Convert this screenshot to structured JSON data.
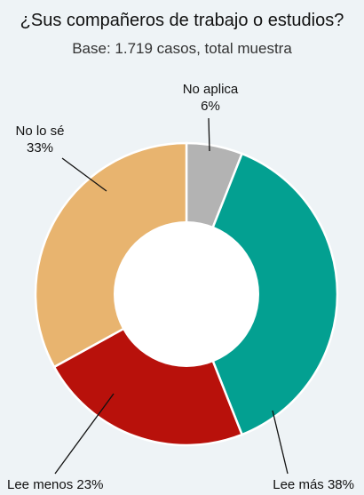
{
  "header": {
    "title": "¿Sus compañeros de trabajo o estudios?",
    "subtitle": "Base: 1.719 casos, total muestra"
  },
  "chart_data": {
    "type": "pie",
    "style": "donut",
    "title": "¿Sus compañeros de trabajo o estudios?",
    "subtitle": "Base: 1.719 casos, total muestra",
    "slices": [
      {
        "label": "No aplica",
        "value": 6,
        "display": "6%",
        "color": "#b3b3b3"
      },
      {
        "label": "Lee más",
        "value": 38,
        "display": "38%",
        "color": "#03a091"
      },
      {
        "label": "Lee menos",
        "value": 23,
        "display": "23%",
        "color": "#b8110b"
      },
      {
        "label": "No lo sé",
        "value": 33,
        "display": "33%",
        "color": "#e8b46f"
      }
    ]
  }
}
